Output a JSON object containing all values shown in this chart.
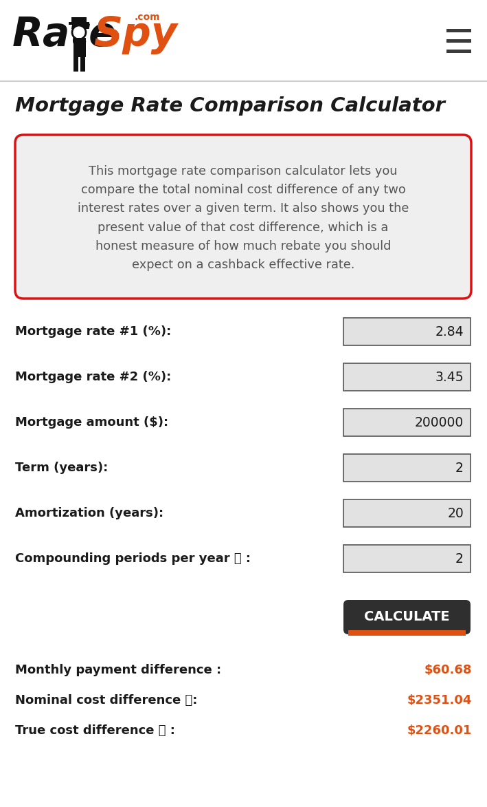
{
  "bg_color": "#ffffff",
  "header_line_color": "#cccccc",
  "title": "Mortgage Rate Comparison Calculator",
  "description": "This mortgage rate comparison calculator lets you\ncompare the total nominal cost difference of any two\ninterest rates over a given term. It also shows you the\npresent value of that cost difference, which is a\nhonest measure of how much rebate you should\nexpect on a cashback effective rate.",
  "desc_box_bg": "#efefef",
  "desc_box_border": "#dd1111",
  "fields": [
    {
      "label": "Mortgage rate #1 (%):",
      "value": "2.84"
    },
    {
      "label": "Mortgage rate #2 (%):",
      "value": "3.45"
    },
    {
      "label": "Mortgage amount ($):",
      "value": "200000"
    },
    {
      "label": "Term (years):",
      "value": "2"
    },
    {
      "label": "Amortization (years):",
      "value": "20"
    },
    {
      "label": "Compounding periods per year ⓘ :",
      "value": "2"
    }
  ],
  "input_box_bg": "#e2e2e2",
  "input_box_border": "#555555",
  "button_text": "CALCULATE",
  "button_bg": "#2f2f2f",
  "button_accent": "#e05010",
  "results": [
    {
      "label": "Monthly payment difference :",
      "value": "$60.68"
    },
    {
      "label": "Nominal cost difference ⓘ:",
      "value": "$2351.04"
    },
    {
      "label": "True cost difference ⓘ :",
      "value": "$2260.01"
    }
  ],
  "result_color": "#e05010",
  "label_color": "#1a1a1a",
  "title_color": "#1a1a1a",
  "navbar_color": "#ffffff",
  "navbar_border": "#cccccc",
  "hamburger_color": "#3a3a3a",
  "logo_black": "#111111",
  "logo_orange": "#e05010"
}
